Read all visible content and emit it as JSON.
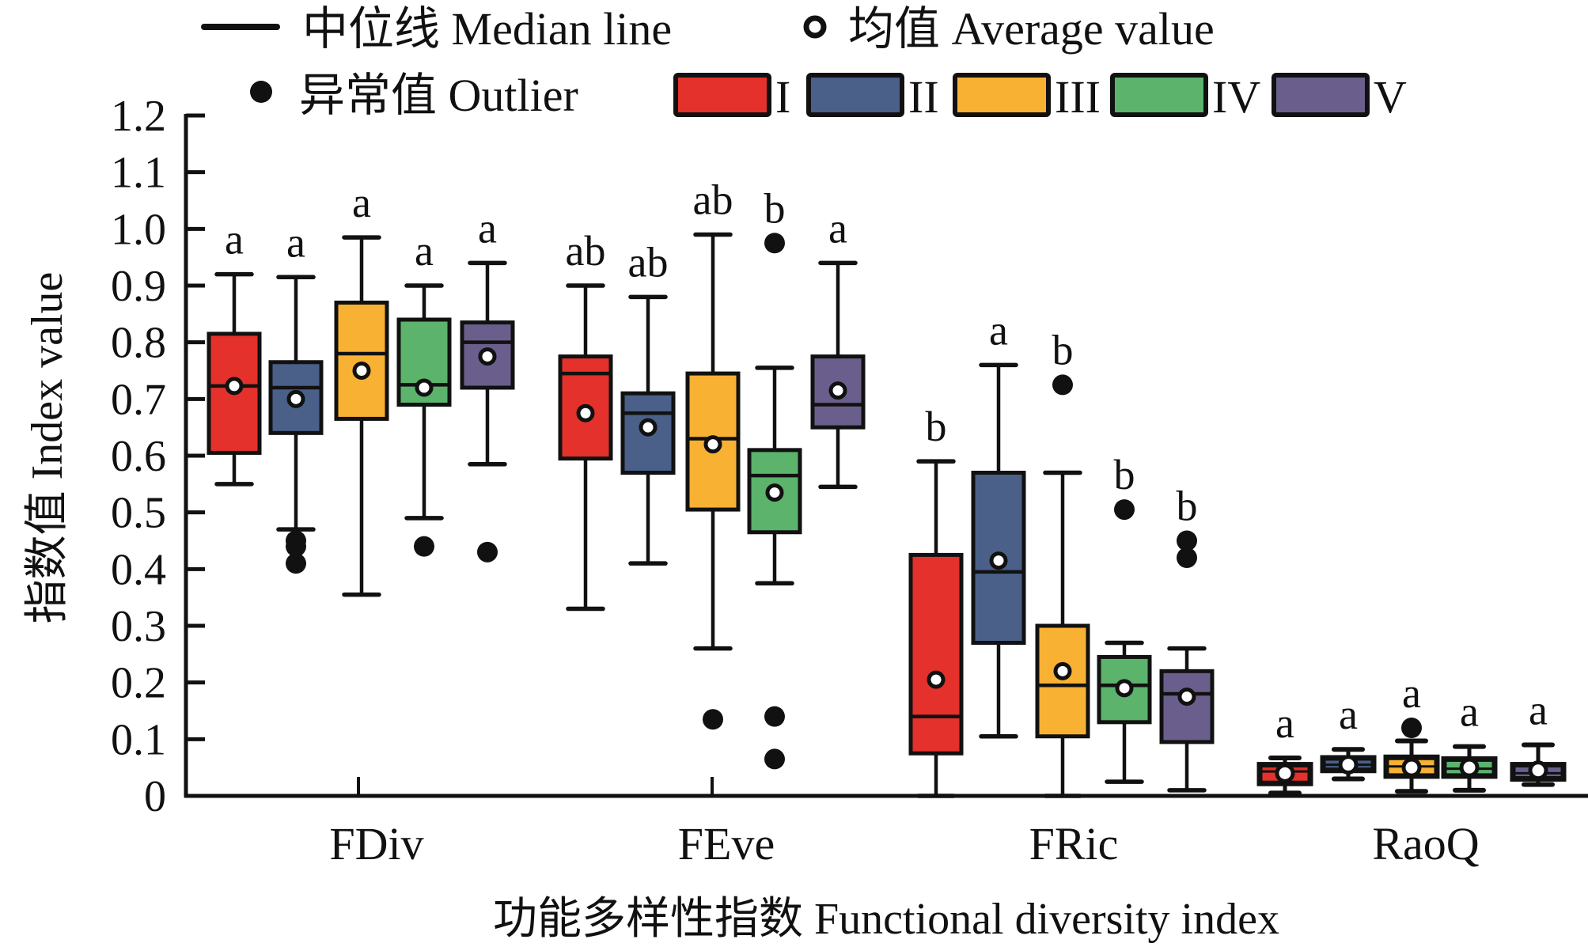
{
  "chart_data": {
    "type": "boxplot",
    "title": "",
    "xlabel": "功能多样性指数 Functional diversity index",
    "ylabel": "指数值 Index value",
    "ylim": [
      0,
      1.2
    ],
    "yticks": [
      "0",
      "0.1",
      "0.2",
      "0.3",
      "0.4",
      "0.5",
      "0.6",
      "0.7",
      "0.8",
      "0.9",
      "1.0",
      "1.1",
      "1.2"
    ],
    "ytick_values": [
      0,
      0.1,
      0.2,
      0.3,
      0.4,
      0.5,
      0.6,
      0.7,
      0.8,
      0.9,
      1.0,
      1.1,
      1.2
    ],
    "grid": false,
    "legend_placement": "top",
    "categories": [
      "FDiv",
      "FEve",
      "FRic",
      "RaoQ"
    ],
    "legend": {
      "median": "中位线 Median line",
      "mean": "均值 Average value",
      "outlier": "异常值 Outlier",
      "groups": [
        {
          "name": "I",
          "color": "#e4312b"
        },
        {
          "name": "II",
          "color": "#4a6089"
        },
        {
          "name": "III",
          "color": "#f8b133"
        },
        {
          "name": "IV",
          "color": "#5bb36c"
        },
        {
          "name": "V",
          "color": "#6a5f8c"
        }
      ]
    },
    "series": [
      {
        "name": "I",
        "color": "#e4312b",
        "boxes": [
          {
            "category": "FDiv",
            "whisker_low": 0.55,
            "q1": 0.605,
            "median": 0.723,
            "mean": 0.723,
            "q3": 0.815,
            "whisker_high": 0.92,
            "outliers": [],
            "letter": "a"
          },
          {
            "category": "FEve",
            "whisker_low": 0.33,
            "q1": 0.595,
            "median": 0.745,
            "mean": 0.675,
            "q3": 0.775,
            "whisker_high": 0.9,
            "outliers": [],
            "letter": "ab"
          },
          {
            "category": "FRic",
            "whisker_low": 0.0,
            "q1": 0.075,
            "median": 0.14,
            "mean": 0.205,
            "q3": 0.425,
            "whisker_high": 0.59,
            "outliers": [],
            "letter": "b"
          },
          {
            "category": "RaoQ",
            "whisker_low": 0.005,
            "q1": 0.022,
            "median": 0.043,
            "mean": 0.04,
            "q3": 0.055,
            "whisker_high": 0.067,
            "outliers": [],
            "letter": "a"
          }
        ]
      },
      {
        "name": "II",
        "color": "#4a6089",
        "boxes": [
          {
            "category": "FDiv",
            "whisker_low": 0.47,
            "q1": 0.64,
            "median": 0.72,
            "mean": 0.7,
            "q3": 0.765,
            "whisker_high": 0.915,
            "outliers": [
              0.45,
              0.44,
              0.41
            ],
            "letter": "a"
          },
          {
            "category": "FEve",
            "whisker_low": 0.41,
            "q1": 0.57,
            "median": 0.675,
            "mean": 0.65,
            "q3": 0.71,
            "whisker_high": 0.88,
            "outliers": [],
            "letter": "ab"
          },
          {
            "category": "FRic",
            "whisker_low": 0.105,
            "q1": 0.27,
            "median": 0.395,
            "mean": 0.415,
            "q3": 0.57,
            "whisker_high": 0.76,
            "outliers": [],
            "letter": "a"
          },
          {
            "category": "RaoQ",
            "whisker_low": 0.03,
            "q1": 0.045,
            "median": 0.055,
            "mean": 0.055,
            "q3": 0.067,
            "whisker_high": 0.082,
            "outliers": [],
            "letter": "a"
          }
        ]
      },
      {
        "name": "III",
        "color": "#f8b133",
        "boxes": [
          {
            "category": "FDiv",
            "whisker_low": 0.355,
            "q1": 0.665,
            "median": 0.78,
            "mean": 0.75,
            "q3": 0.87,
            "whisker_high": 0.985,
            "outliers": [],
            "letter": "a"
          },
          {
            "category": "FEve",
            "whisker_low": 0.26,
            "q1": 0.505,
            "median": 0.63,
            "mean": 0.62,
            "q3": 0.745,
            "whisker_high": 0.99,
            "outliers": [
              0.135
            ],
            "letter": "ab"
          },
          {
            "category": "FRic",
            "whisker_low": 0.0,
            "q1": 0.105,
            "median": 0.195,
            "mean": 0.22,
            "q3": 0.3,
            "whisker_high": 0.57,
            "outliers": [
              0.725
            ],
            "letter": "b"
          },
          {
            "category": "RaoQ",
            "whisker_low": 0.008,
            "q1": 0.035,
            "median": 0.052,
            "mean": 0.05,
            "q3": 0.068,
            "whisker_high": 0.097,
            "outliers": [
              0.12
            ],
            "letter": "a"
          }
        ]
      },
      {
        "name": "IV",
        "color": "#5bb36c",
        "boxes": [
          {
            "category": "FDiv",
            "whisker_low": 0.49,
            "q1": 0.69,
            "median": 0.725,
            "mean": 0.72,
            "q3": 0.84,
            "whisker_high": 0.9,
            "outliers": [
              0.44
            ],
            "letter": "a"
          },
          {
            "category": "FEve",
            "whisker_low": 0.375,
            "q1": 0.465,
            "median": 0.565,
            "mean": 0.535,
            "q3": 0.61,
            "whisker_high": 0.755,
            "outliers": [
              0.975,
              0.14,
              0.065
            ],
            "letter": "b"
          },
          {
            "category": "FRic",
            "whisker_low": 0.025,
            "q1": 0.13,
            "median": 0.195,
            "mean": 0.19,
            "q3": 0.245,
            "whisker_high": 0.27,
            "outliers": [
              0.505
            ],
            "letter": "b"
          },
          {
            "category": "RaoQ",
            "whisker_low": 0.01,
            "q1": 0.035,
            "median": 0.048,
            "mean": 0.05,
            "q3": 0.065,
            "whisker_high": 0.087,
            "outliers": [],
            "letter": "a"
          }
        ]
      },
      {
        "name": "V",
        "color": "#6a5f8c",
        "boxes": [
          {
            "category": "FDiv",
            "whisker_low": 0.585,
            "q1": 0.72,
            "median": 0.8,
            "mean": 0.775,
            "q3": 0.835,
            "whisker_high": 0.94,
            "outliers": [
              0.43
            ],
            "letter": "a"
          },
          {
            "category": "FEve",
            "whisker_low": 0.545,
            "q1": 0.65,
            "median": 0.69,
            "mean": 0.715,
            "q3": 0.775,
            "whisker_high": 0.94,
            "outliers": [],
            "letter": "a"
          },
          {
            "category": "FRic",
            "whisker_low": 0.01,
            "q1": 0.095,
            "median": 0.18,
            "mean": 0.175,
            "q3": 0.22,
            "whisker_high": 0.26,
            "outliers": [
              0.45,
              0.42
            ],
            "letter": "b"
          },
          {
            "category": "RaoQ",
            "whisker_low": 0.02,
            "q1": 0.03,
            "median": 0.04,
            "mean": 0.045,
            "q3": 0.055,
            "whisker_high": 0.09,
            "outliers": [],
            "letter": "a"
          }
        ]
      }
    ]
  }
}
